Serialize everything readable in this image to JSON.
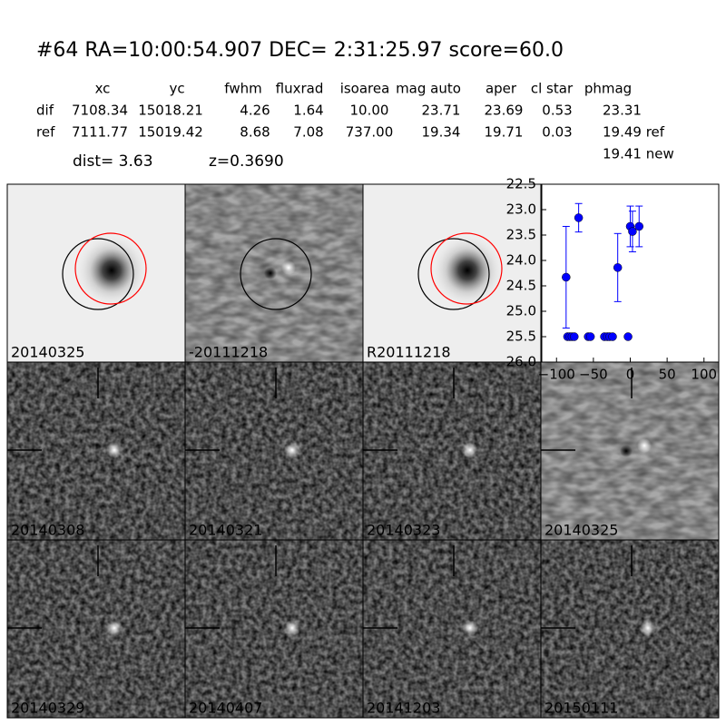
{
  "header": {
    "title": "#64   RA=10:00:54.907 DEC= 2:31:25.97      score=60.0"
  },
  "table": {
    "columns": [
      "xc",
      "yc",
      "fwhm",
      "fluxrad",
      "isoarea",
      "mag auto",
      "aper",
      "cl star",
      "phmag"
    ],
    "rows": [
      {
        "name": "dif",
        "cells": [
          "7108.34",
          "15018.21",
          "4.26",
          "1.64",
          "10.00",
          "23.71",
          "23.69",
          "0.53",
          "23.31"
        ]
      },
      {
        "name": "ref",
        "cells": [
          "7111.77",
          "15019.42",
          "8.68",
          "7.08",
          "737.00",
          "19.34",
          "19.71",
          "0.03",
          "19.49 ref"
        ]
      }
    ],
    "extra": "19.41 new"
  },
  "notes": {
    "dist": "dist=  3.63",
    "z": "z=0.3690"
  },
  "panels": [
    {
      "label": "20140325"
    },
    {
      "label": "-20111218"
    },
    {
      "label": "R20111218"
    },
    {
      "label": "20140308"
    },
    {
      "label": "20140321"
    },
    {
      "label": "20140323"
    },
    {
      "label": "20140325",
      "color": "#ff0000"
    },
    {
      "label": "20140329"
    },
    {
      "label": "20140407"
    },
    {
      "label": "20141203"
    },
    {
      "label": "20150111"
    }
  ],
  "chart_data": {
    "type": "scatter",
    "x": [
      -87,
      -70,
      -85,
      -82,
      -79,
      -76,
      -57,
      -54,
      -35,
      -31,
      -28,
      -24,
      -17,
      -3,
      0,
      3,
      12
    ],
    "series": [
      {
        "color": "#0000ff",
        "values": [
          24.33,
          23.16,
          25.5,
          25.5,
          25.5,
          25.5,
          25.5,
          25.5,
          25.5,
          25.5,
          25.5,
          25.5,
          24.14,
          25.5,
          23.33,
          23.43,
          23.33
        ],
        "errors": [
          1.0,
          0.28,
          null,
          null,
          null,
          null,
          null,
          null,
          null,
          null,
          null,
          null,
          0.67,
          null,
          0.4,
          0.4,
          0.4
        ]
      }
    ],
    "xlim": [
      -120,
      120
    ],
    "ylim": [
      26.0,
      22.5
    ],
    "xticks": [
      {
        "value": -100,
        "label": "−100"
      },
      {
        "value": -50,
        "label": "−50"
      },
      0,
      50,
      100
    ],
    "yticks": [
      22.5,
      {
        "value": 23,
        "label": "23.0"
      },
      23.5,
      {
        "value": 24,
        "label": "24.0"
      },
      24.5,
      {
        "value": 25,
        "label": "25.0"
      },
      25.5,
      {
        "value": 26,
        "label": "26.0"
      }
    ]
  }
}
